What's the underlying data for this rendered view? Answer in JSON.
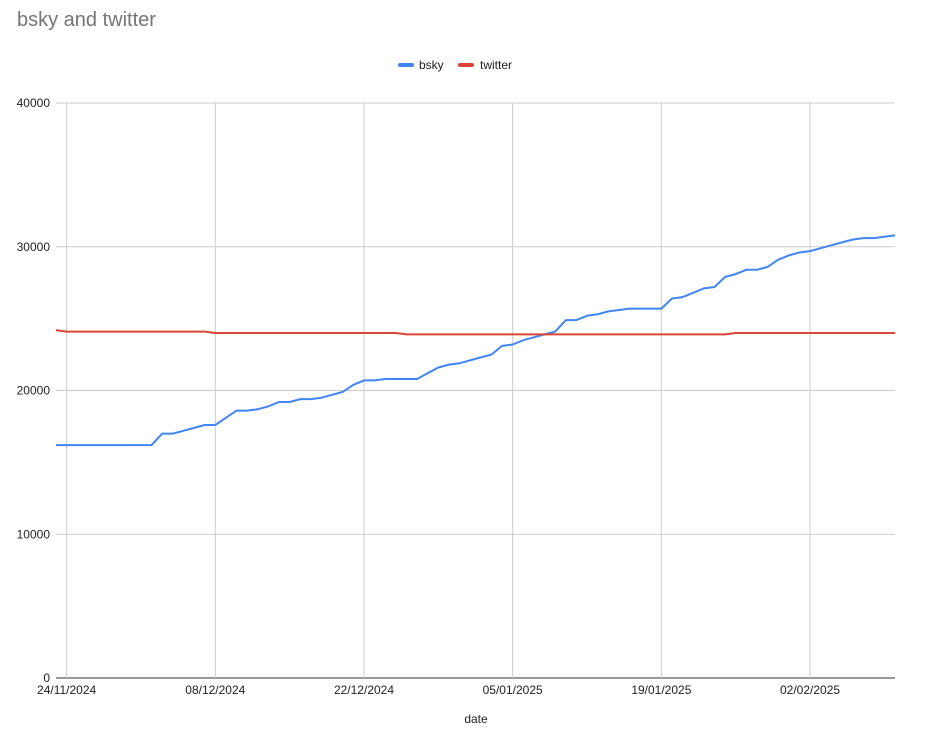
{
  "chart_data": {
    "type": "line",
    "title": "bsky and twitter",
    "xlabel": "date",
    "ylabel": "",
    "ylim": [
      0,
      40000
    ],
    "yticks": [
      0,
      10000,
      20000,
      30000,
      40000
    ],
    "xticks": [
      "24/11/2024",
      "08/12/2024",
      "22/12/2024",
      "05/01/2025",
      "19/01/2025",
      "02/02/2025"
    ],
    "legend": "top-center",
    "grid": true,
    "x": [
      "23/11/2024",
      "24/11/2024",
      "25/11/2024",
      "26/11/2024",
      "27/11/2024",
      "28/11/2024",
      "29/11/2024",
      "30/11/2024",
      "01/12/2024",
      "02/12/2024",
      "03/12/2024",
      "04/12/2024",
      "05/12/2024",
      "06/12/2024",
      "07/12/2024",
      "08/12/2024",
      "09/12/2024",
      "10/12/2024",
      "11/12/2024",
      "12/12/2024",
      "13/12/2024",
      "14/12/2024",
      "15/12/2024",
      "16/12/2024",
      "17/12/2024",
      "18/12/2024",
      "19/12/2024",
      "20/12/2024",
      "21/12/2024",
      "22/12/2024",
      "23/12/2024",
      "24/12/2024",
      "25/12/2024",
      "26/12/2024",
      "27/12/2024",
      "28/12/2024",
      "29/12/2024",
      "30/12/2024",
      "31/12/2024",
      "01/01/2025",
      "02/01/2025",
      "03/01/2025",
      "04/01/2025",
      "05/01/2025",
      "06/01/2025",
      "07/01/2025",
      "08/01/2025",
      "09/01/2025",
      "10/01/2025",
      "11/01/2025",
      "12/01/2025",
      "13/01/2025",
      "14/01/2025",
      "15/01/2025",
      "16/01/2025",
      "17/01/2025",
      "18/01/2025",
      "19/01/2025",
      "20/01/2025",
      "21/01/2025",
      "22/01/2025",
      "23/01/2025",
      "24/01/2025",
      "25/01/2025",
      "26/01/2025",
      "27/01/2025",
      "28/01/2025",
      "29/01/2025",
      "30/01/2025",
      "31/01/2025",
      "01/02/2025",
      "02/02/2025",
      "03/02/2025",
      "04/02/2025",
      "05/02/2025",
      "06/02/2025",
      "07/02/2025",
      "08/02/2025",
      "09/02/2025",
      "10/02/2025"
    ],
    "series": [
      {
        "name": "bsky",
        "color": "#4285F4",
        "values": [
          16200,
          16200,
          16200,
          16200,
          16200,
          16200,
          16200,
          16200,
          16200,
          16200,
          17000,
          17000,
          17200,
          17400,
          17600,
          17600,
          18100,
          18600,
          18600,
          18700,
          18900,
          19200,
          19200,
          19400,
          19400,
          19500,
          19700,
          19900,
          20400,
          20700,
          20700,
          20800,
          20800,
          20800,
          20800,
          21200,
          21600,
          21800,
          21900,
          22100,
          22300,
          22500,
          23100,
          23200,
          23500,
          23700,
          23900,
          24100,
          24900,
          24900,
          25200,
          25300,
          25500,
          25600,
          25700,
          25700,
          25700,
          25700,
          26400,
          26500,
          26800,
          27100,
          27200,
          27900,
          28100,
          28400,
          28400,
          28600,
          29100,
          29400,
          29600,
          29700,
          29900,
          30100,
          30300,
          30500,
          30600,
          30600,
          30700,
          30800
        ]
      },
      {
        "name": "twitter",
        "color": "#DB4437",
        "values": [
          24200,
          24100,
          24100,
          24100,
          24100,
          24100,
          24100,
          24100,
          24100,
          24100,
          24100,
          24100,
          24100,
          24100,
          24100,
          24000,
          24000,
          24000,
          24000,
          24000,
          24000,
          24000,
          24000,
          24000,
          24000,
          24000,
          24000,
          24000,
          24000,
          24000,
          24000,
          24000,
          24000,
          23900,
          23900,
          23900,
          23900,
          23900,
          23900,
          23900,
          23900,
          23900,
          23900,
          23900,
          23900,
          23900,
          23900,
          23900,
          23900,
          23900,
          23900,
          23900,
          23900,
          23900,
          23900,
          23900,
          23900,
          23900,
          23900,
          23900,
          23900,
          23900,
          23900,
          23900,
          24000,
          24000,
          24000,
          24000,
          24000,
          24000,
          24000,
          24000,
          24000,
          24000,
          24000,
          24000,
          24000,
          24000,
          24000,
          24000
        ]
      }
    ]
  }
}
